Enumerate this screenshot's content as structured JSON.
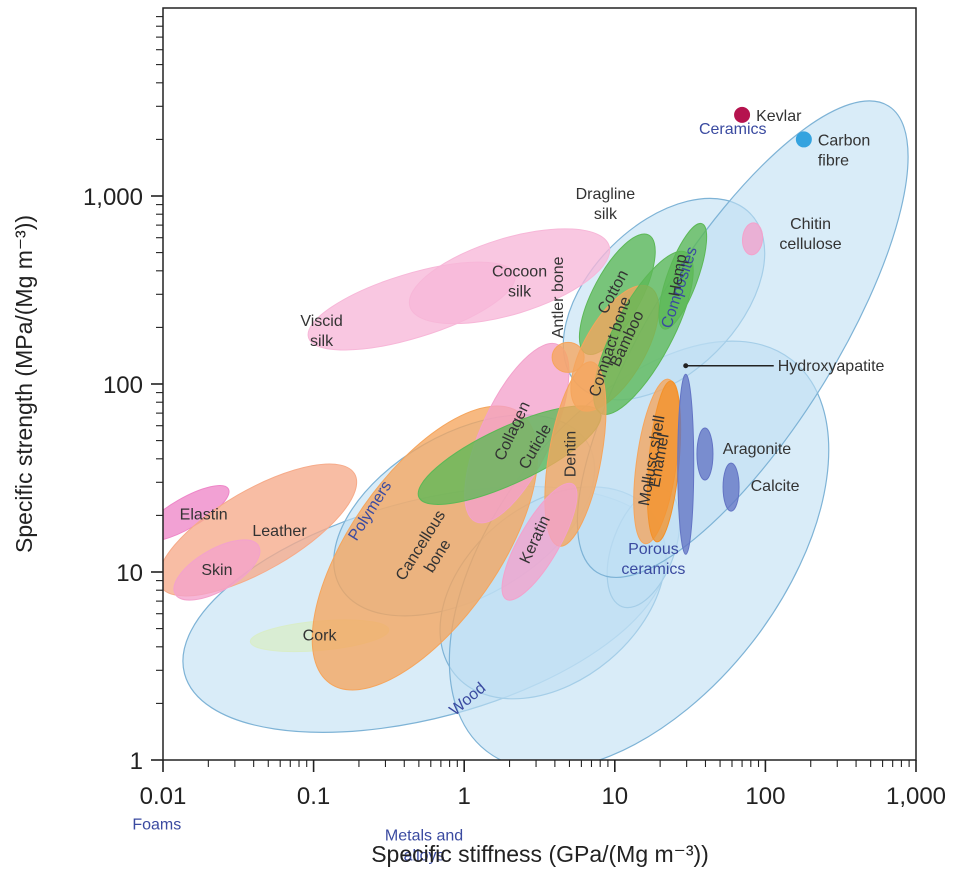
{
  "chart_data": {
    "type": "scatter",
    "xlabel": "Specific stiffness (GPa/(Mg m⁻³))",
    "ylabel": "Specific strength (MPa/(Mg m⁻³))",
    "xscale": "log",
    "yscale": "log",
    "xlim": [
      0.01,
      1000
    ],
    "ylim": [
      1,
      10000
    ],
    "x_tick_labels": [
      {
        "value": 0.01,
        "label": "0.01"
      },
      {
        "value": 0.1,
        "label": "0.1"
      },
      {
        "value": 1,
        "label": "1"
      },
      {
        "value": 10,
        "label": "10"
      },
      {
        "value": 100,
        "label": "100"
      },
      {
        "value": 1000,
        "label": "1,000"
      }
    ],
    "y_tick_labels": [
      {
        "value": 1,
        "label": "1"
      },
      {
        "value": 10,
        "label": "10"
      },
      {
        "value": 100,
        "label": "100"
      },
      {
        "value": 1000,
        "label": "1,000"
      }
    ],
    "grid": false,
    "legend": "none",
    "class_regions": [
      {
        "label": "Foams",
        "x_range": [
          0.01,
          30
        ],
        "y_range": [
          1,
          40
        ],
        "color": "#bfe0f3"
      },
      {
        "label": "Polymers",
        "x_range": [
          0.1,
          10
        ],
        "y_range": [
          5,
          80
        ],
        "color": "#bfe0f3"
      },
      {
        "label": "Wood",
        "x_range": [
          0.6,
          25
        ],
        "y_range": [
          1.5,
          40
        ],
        "color": "#bfe0f3"
      },
      {
        "label": "Porous ceramics",
        "x_range": [
          8,
          30
        ],
        "y_range": [
          6,
          30
        ],
        "color": "#bfe0f3"
      },
      {
        "label": "Metals and alloys",
        "x_range": [
          0.7,
          300
        ],
        "y_range": [
          0.5,
          300
        ],
        "color": "#bfe0f3"
      },
      {
        "label": "Composites",
        "x_range": [
          3,
          150
        ],
        "y_range": [
          80,
          1000
        ],
        "color": "#bfe0f3"
      },
      {
        "label": "Ceramics",
        "x_range": [
          10,
          500
        ],
        "y_range": [
          5,
          6000
        ],
        "color": "#bfe0f3"
      }
    ],
    "materials": [
      {
        "label": "Elastin",
        "x_range": [
          0.01,
          0.02
        ],
        "y_range": [
          12,
          35
        ],
        "color": "#ee86c8"
      },
      {
        "label": "Leather",
        "x_range": [
          0.01,
          0.18
        ],
        "y_range": [
          8,
          35
        ],
        "color": "#f6ab8a"
      },
      {
        "label": "Skin",
        "x_range": [
          0.013,
          0.04
        ],
        "y_range": [
          7,
          15
        ],
        "color": "#f3a2cc"
      },
      {
        "label": "Cork",
        "x_range": [
          0.04,
          0.3
        ],
        "y_range": [
          3.5,
          6
        ],
        "color": "#d9edc8"
      },
      {
        "label": "Viscid silk",
        "x_range": [
          0.1,
          2
        ],
        "y_range": [
          150,
          450
        ],
        "color": "#f7b7d8"
      },
      {
        "label": "Cocoon silk",
        "x_range": [
          0.5,
          8
        ],
        "y_range": [
          200,
          700
        ],
        "color": "#f7b7d8"
      },
      {
        "label": "Dragline silk",
        "x_range": [
          5,
          15
        ],
        "y_range": [
          500,
          1200
        ],
        "color": "#f7b7d8"
      },
      {
        "label": "Cancellous bone",
        "x_range": [
          0.1,
          3
        ],
        "y_range": [
          3,
          60
        ],
        "color": "#f5a55d"
      },
      {
        "label": "Collagen",
        "x_range": [
          1,
          5
        ],
        "y_range": [
          20,
          150
        ],
        "color": "#f3a2cc"
      },
      {
        "label": "Cuticle",
        "x_range": [
          0.5,
          8
        ],
        "y_range": [
          25,
          70
        ],
        "color": "#5cb856"
      },
      {
        "label": "Antler bone",
        "x_range": [
          4,
          6
        ],
        "y_range": [
          120,
          160
        ],
        "color": "#f5a55d"
      },
      {
        "label": "Cotton",
        "x_range": [
          6,
          18
        ],
        "y_range": [
          150,
          600
        ],
        "color": "#5cb856"
      },
      {
        "label": "Compact bone",
        "x_range": [
          5,
          20
        ],
        "y_range": [
          80,
          300
        ],
        "color": "#f5a55d"
      },
      {
        "label": "Bamboo",
        "x_range": [
          8,
          30
        ],
        "y_range": [
          70,
          500
        ],
        "color": "#5cb856"
      },
      {
        "label": "Hemp",
        "x_range": [
          20,
          40
        ],
        "y_range": [
          200,
          700
        ],
        "color": "#5cb856"
      },
      {
        "label": "Dentin",
        "x_range": [
          3,
          10
        ],
        "y_range": [
          15,
          120
        ],
        "color": "#f5a55d"
      },
      {
        "label": "Keratin",
        "x_range": [
          2,
          5
        ],
        "y_range": [
          7,
          30
        ],
        "color": "#f3a2cc"
      },
      {
        "label": "Mollusc shell",
        "x_range": [
          12,
          30
        ],
        "y_range": [
          15,
          100
        ],
        "color": "#f5a55d"
      },
      {
        "label": "Enamel",
        "x_range": [
          15,
          30
        ],
        "y_range": [
          15,
          100
        ],
        "color": "#f3922a"
      },
      {
        "label": "Hydroxyapatite",
        "x_range": [
          25,
          35
        ],
        "y_range": [
          10,
          140
        ],
        "color": "#6374c4"
      },
      {
        "label": "Aragonite",
        "x_range": [
          35,
          45
        ],
        "y_range": [
          30,
          60
        ],
        "color": "#6374c4"
      },
      {
        "label": "Calcite",
        "x_range": [
          50,
          70
        ],
        "y_range": [
          20,
          40
        ],
        "color": "#6374c4"
      },
      {
        "label": "Chitin cellulose",
        "x_range": [
          75,
          90
        ],
        "y_range": [
          500,
          700
        ],
        "color": "#f3a2cc"
      }
    ],
    "points": [
      {
        "label": "Kevlar",
        "x": 70,
        "y": 2700,
        "color": "#b5134e"
      },
      {
        "label": "Carbon fibre",
        "x": 180,
        "y": 2000,
        "color": "#35a3df"
      }
    ]
  }
}
